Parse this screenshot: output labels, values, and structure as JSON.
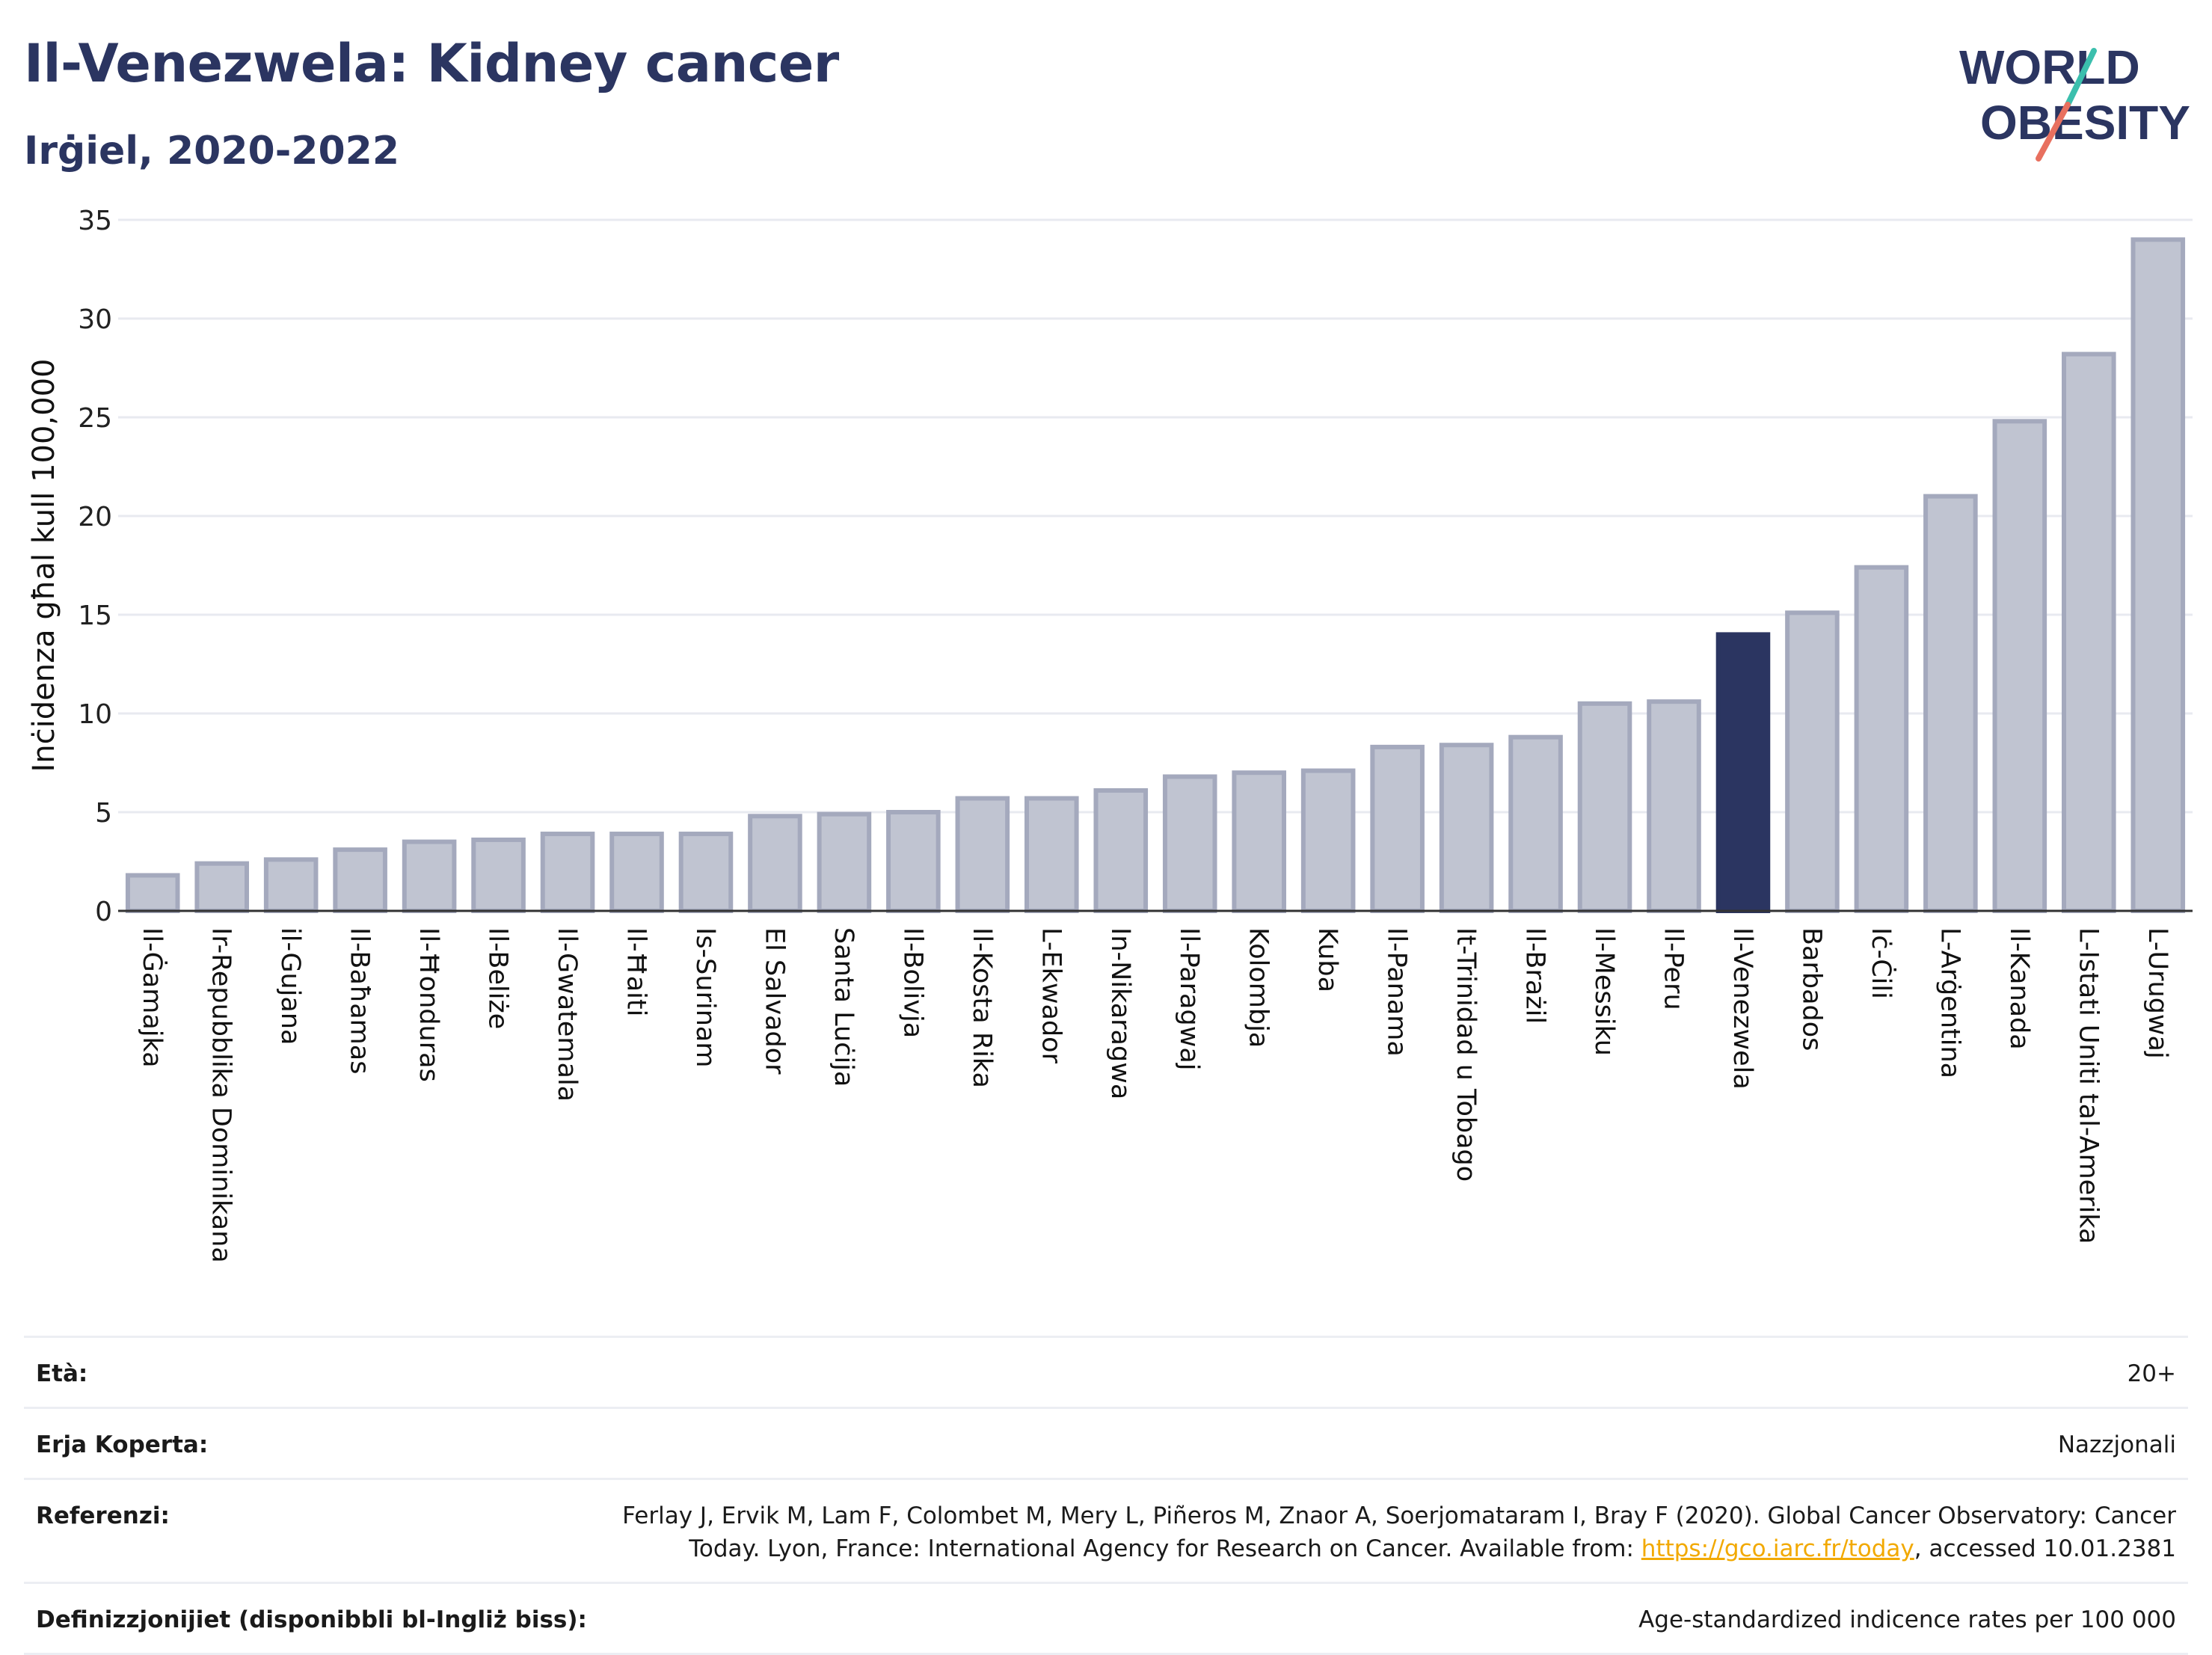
{
  "header": {
    "title": "Il-Venezwela: Kidney cancer",
    "subtitle": "Irġiel, 2020-2022"
  },
  "logo": {
    "line1": "WORLD",
    "line2": "OBESITY",
    "colors": {
      "text": "#2b3561",
      "slash_top": "#3bbfad",
      "slash_bottom": "#e8705f"
    }
  },
  "chart_data": {
    "type": "bar",
    "title": "",
    "xlabel": "",
    "ylabel": "Inċidenza għal kull 100,000",
    "ylim": [
      0,
      35
    ],
    "yticks": [
      0,
      5,
      10,
      15,
      20,
      25,
      30,
      35
    ],
    "grid": true,
    "highlight": "Il-Venezwela",
    "colors": {
      "bar": "#c0c4d1",
      "bar_edge": "#a4a9bd",
      "highlight": "#2b3561",
      "grid": "#e8eaf0"
    },
    "categories": [
      "Il-Ġamajka",
      "Ir-Repubblika Dominikana",
      "il-Gujana",
      "Il-Baħamas",
      "Il-Ħonduras",
      "Il-Beliże",
      "Il-Gwatemala",
      "Il-Ħaiti",
      "Is-Surinam",
      "El Salvador",
      "Santa Luċija",
      "Il-Bolivja",
      "Il-Kosta Rika",
      "L-Ekwador",
      "In-Nikaragwa",
      "Il-Paragwaj",
      "Kolombja",
      "Kuba",
      "Il-Panama",
      "It-Trinidad u Tobago",
      "Il-Brażil",
      "Il-Messiku",
      "Il-Peru",
      "Il-Venezwela",
      "Barbados",
      "Iċ-Ċili",
      "L-Arġentina",
      "Il-Kanada",
      "L-Istati Uniti tal-Amerika",
      "L-Urugwaj"
    ],
    "values": [
      1.8,
      2.4,
      2.6,
      3.1,
      3.5,
      3.6,
      3.9,
      3.9,
      3.9,
      4.8,
      4.9,
      5.0,
      5.7,
      5.7,
      6.1,
      6.8,
      7.0,
      7.1,
      8.3,
      8.4,
      8.8,
      10.5,
      10.6,
      14.0,
      15.1,
      17.4,
      21.0,
      24.8,
      28.2,
      34.0
    ]
  },
  "meta": {
    "age_label": "Età:",
    "age_value": "20+",
    "area_label": "Erja Koperta:",
    "area_value": "Nazzjonali",
    "ref_label": "Referenzi:",
    "ref_line1": "Ferlay J, Ervik M, Lam F, Colombet M, Mery L, Piñeros M, Znaor A, Soerjomataram I, Bray F (2020). Global Cancer Observatory: Cancer",
    "ref_line2_pre": "Today. Lyon, France: International Agency for Research on Cancer. Available from: ",
    "ref_link": "https://gco.iarc.fr/today",
    "ref_line2_post": ", accessed 10.01.2381",
    "def_label": "Definizzjonijiet (disponibbli bl-Ingliż biss):",
    "def_value": "Age-standardized indicence rates per 100 000"
  }
}
